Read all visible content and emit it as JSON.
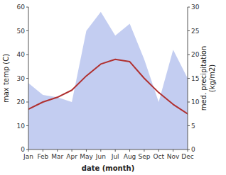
{
  "chart_data": {
    "type": "line",
    "categories": [
      "Jan",
      "Feb",
      "Mar",
      "Apr",
      "May",
      "Jun",
      "Jul",
      "Aug",
      "Sep",
      "Oct",
      "Nov",
      "Dec"
    ],
    "series": [
      {
        "type": "area",
        "axis": "y2",
        "color": "#b8c4ee",
        "values": [
          14,
          11.5,
          11,
          10,
          25,
          29,
          24,
          26.5,
          19,
          10,
          21,
          15
        ]
      },
      {
        "type": "line",
        "color": "#b03030",
        "values": [
          17,
          20,
          22,
          25,
          31,
          36,
          38,
          37,
          30,
          24,
          19,
          15
        ]
      }
    ],
    "xlabel": "date (month)",
    "ylabel": "max temp (C)",
    "y2label": "med. precipitation\n(kg/m2)",
    "ylim": [
      0,
      60
    ],
    "yticks": [
      0,
      10,
      20,
      30,
      40,
      50,
      60
    ],
    "y2lim": [
      0,
      30
    ],
    "y2ticks": [
      0,
      5,
      10,
      15,
      20,
      25,
      30
    ]
  }
}
